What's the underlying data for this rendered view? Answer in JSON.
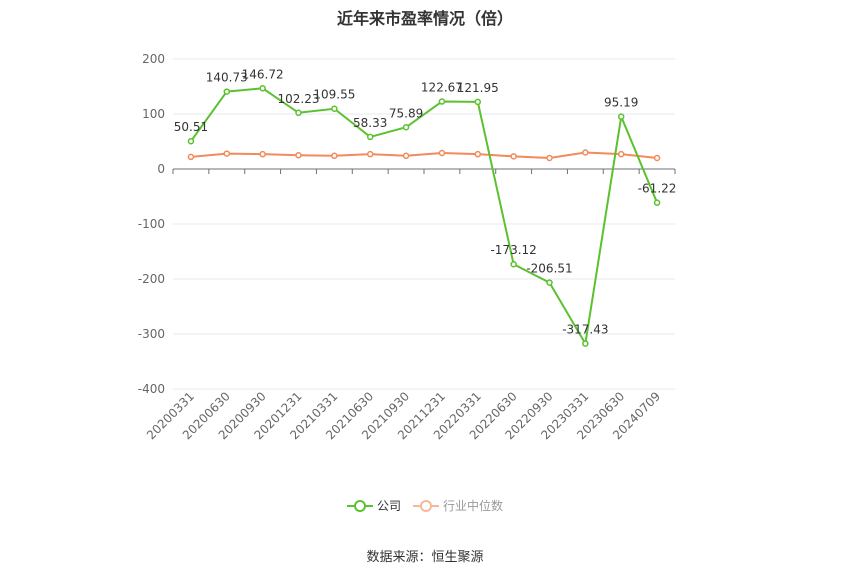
{
  "page": {
    "title": "近年来市盈率情况（倍）",
    "source": "数据来源：恒生聚源"
  },
  "legend": {
    "items": [
      {
        "label": "公司",
        "color": "#5bc12f"
      },
      {
        "label": "行业中位数",
        "color": "#f28a5c"
      }
    ]
  },
  "chart_data": {
    "type": "line",
    "title": "近年来市盈率情况（倍）",
    "categories": [
      "20200331",
      "20200630",
      "20200930",
      "20201231",
      "20210331",
      "20210630",
      "20210930",
      "20211231",
      "20220331",
      "20220630",
      "20220930",
      "20230331",
      "20230630",
      "20240709"
    ],
    "ylim": [
      -400,
      200
    ],
    "yticks": [
      200,
      100,
      0,
      -100,
      -200,
      -300,
      -400
    ],
    "grid": true,
    "legend_position": "bottom-center",
    "series": [
      {
        "name": "公司",
        "color": "#5bc12f",
        "values": [
          50.51,
          140.73,
          146.72,
          102.23,
          109.55,
          58.33,
          75.89,
          122.67,
          121.95,
          -173.12,
          -206.51,
          -317.43,
          95.19,
          -61.22
        ],
        "labels": [
          "50.51",
          "140.73",
          "146.72",
          "102.23",
          "109.55",
          "58.33",
          "75.89",
          "122.67",
          "121.95",
          "-173.12",
          "-206.51",
          "-317.43",
          "95.19",
          "-61.22"
        ]
      },
      {
        "name": "行业中位数",
        "color": "#f28a5c",
        "values": [
          22,
          28,
          27,
          25,
          24,
          27,
          24,
          29,
          27,
          23,
          20,
          30,
          27,
          20
        ]
      }
    ]
  }
}
